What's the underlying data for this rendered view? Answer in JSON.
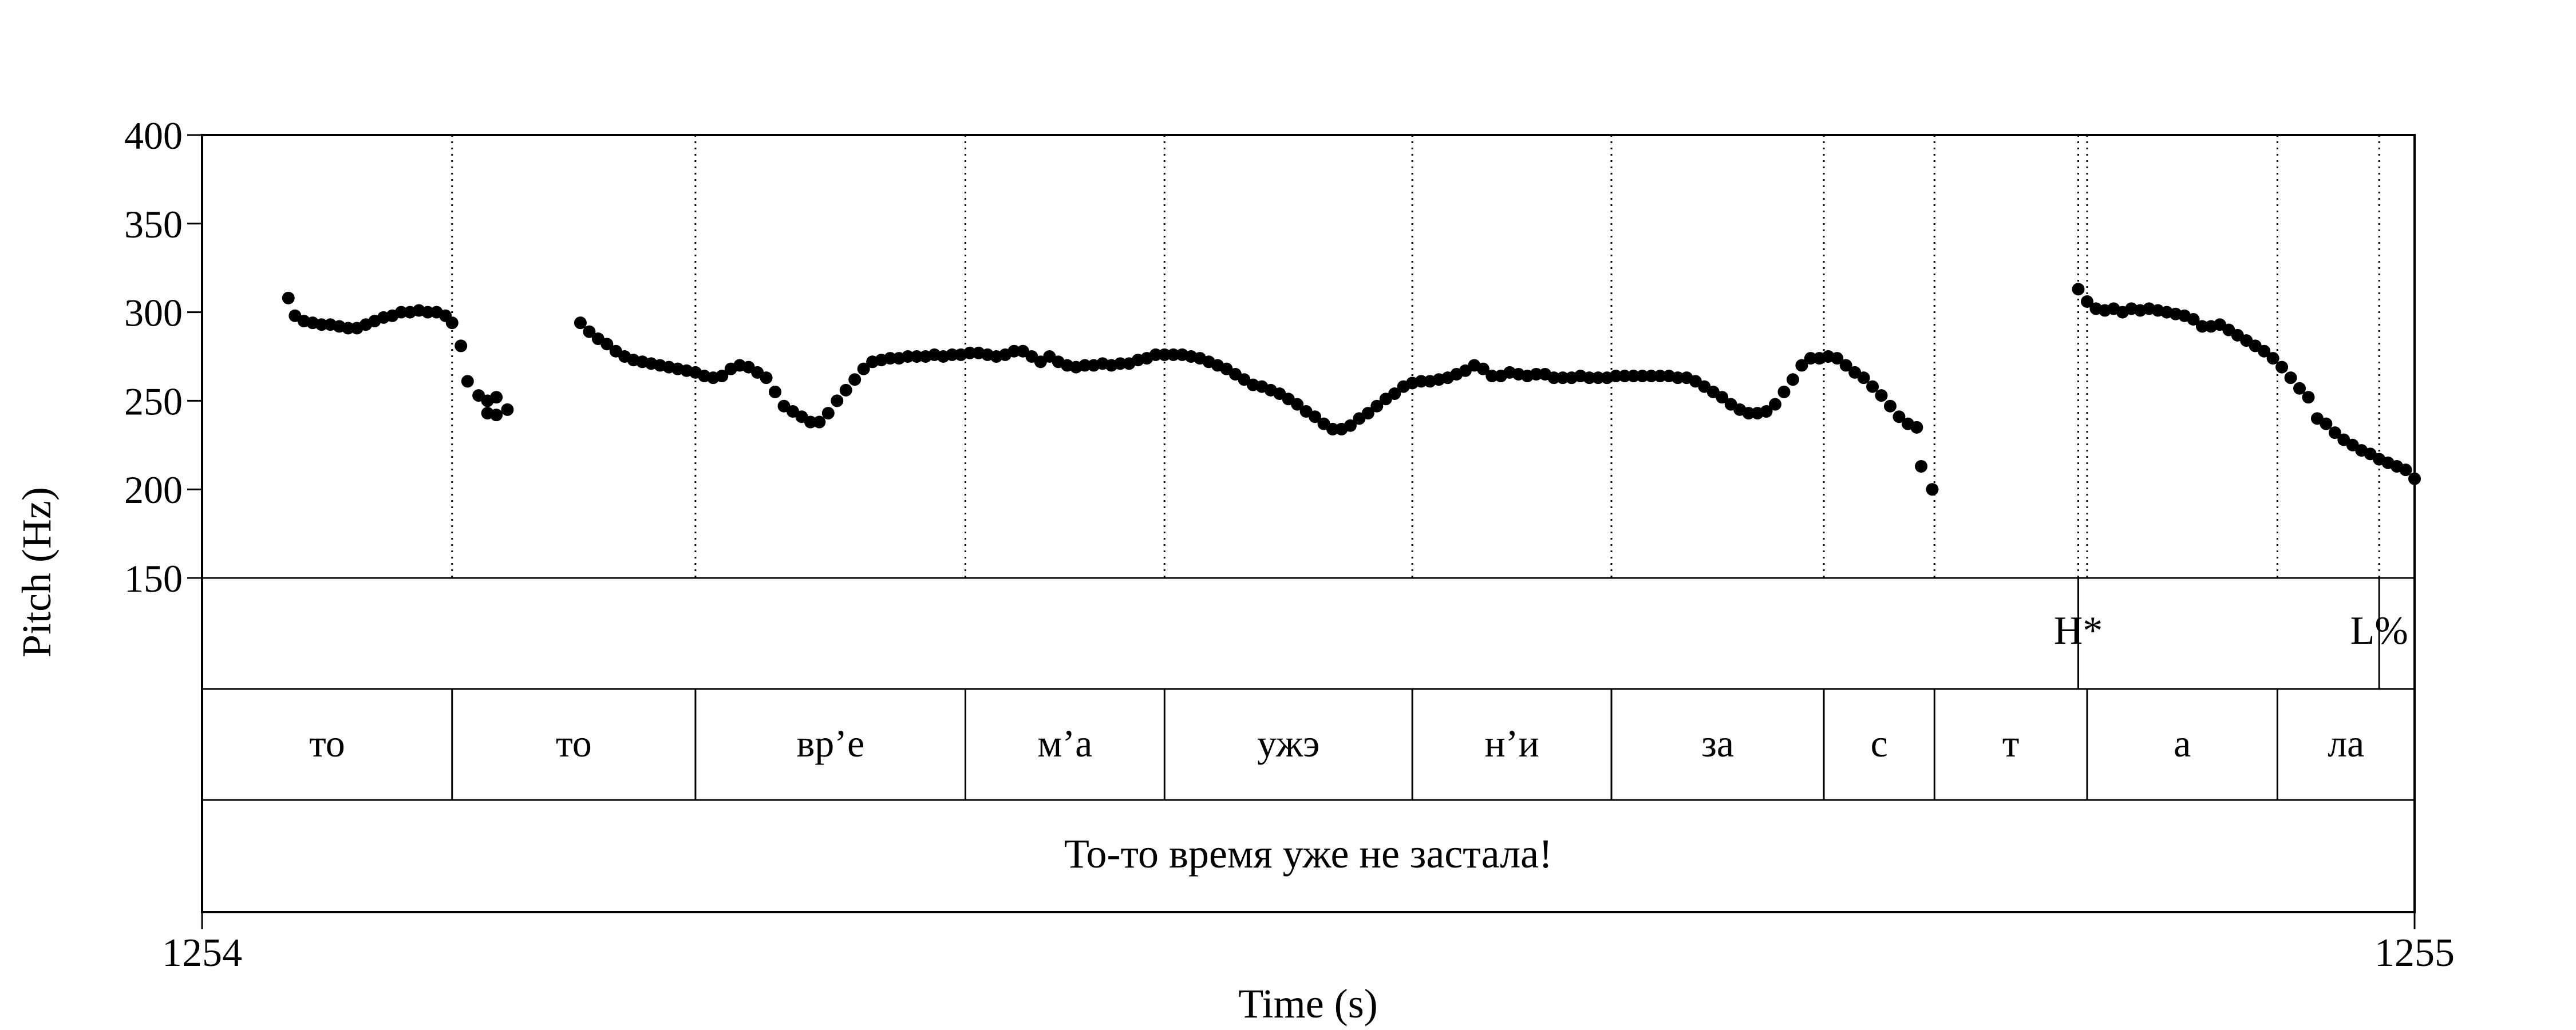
{
  "chart_data": {
    "type": "scatter",
    "ylabel": "Pitch (Hz)",
    "xlabel": "Time (s)",
    "ylim": [
      150,
      400
    ],
    "yticks": [
      "400",
      "350",
      "300",
      "250",
      "200",
      "150"
    ],
    "xlim": [
      1254,
      1255
    ],
    "xticks": [
      "1254",
      "1255"
    ],
    "grid": false,
    "series": [
      {
        "points": [
          [
            1254.039,
            308
          ],
          [
            1254.042,
            298
          ],
          [
            1254.046,
            295
          ],
          [
            1254.05,
            294
          ],
          [
            1254.054,
            293
          ],
          [
            1254.058,
            293
          ],
          [
            1254.062,
            292
          ],
          [
            1254.066,
            291
          ],
          [
            1254.07,
            291
          ],
          [
            1254.074,
            293
          ],
          [
            1254.078,
            295
          ],
          [
            1254.082,
            297
          ],
          [
            1254.086,
            298
          ],
          [
            1254.09,
            300
          ],
          [
            1254.094,
            300
          ],
          [
            1254.098,
            301
          ],
          [
            1254.102,
            300
          ],
          [
            1254.106,
            300
          ],
          [
            1254.11,
            298
          ],
          [
            1254.113,
            294
          ],
          [
            1254.117,
            281
          ],
          [
            1254.12,
            261
          ],
          [
            1254.125,
            253
          ],
          [
            1254.129,
            243
          ],
          [
            1254.133,
            242
          ],
          [
            1254.129,
            250
          ],
          [
            1254.133,
            252
          ],
          [
            1254.138,
            245
          ],
          [
            1254.171,
            294
          ],
          [
            1254.175,
            289
          ],
          [
            1254.179,
            285
          ],
          [
            1254.183,
            282
          ],
          [
            1254.187,
            278
          ],
          [
            1254.191,
            275
          ],
          [
            1254.195,
            273
          ],
          [
            1254.199,
            272
          ],
          [
            1254.203,
            271
          ],
          [
            1254.207,
            270
          ],
          [
            1254.211,
            269
          ],
          [
            1254.215,
            268
          ],
          [
            1254.219,
            267
          ],
          [
            1254.223,
            266
          ],
          [
            1254.227,
            264
          ],
          [
            1254.231,
            263
          ],
          [
            1254.235,
            264
          ],
          [
            1254.239,
            268
          ],
          [
            1254.243,
            270
          ],
          [
            1254.247,
            269
          ],
          [
            1254.251,
            266
          ],
          [
            1254.255,
            263
          ],
          [
            1254.259,
            255
          ],
          [
            1254.263,
            247
          ],
          [
            1254.267,
            244
          ],
          [
            1254.271,
            241
          ],
          [
            1254.275,
            238
          ],
          [
            1254.279,
            238
          ],
          [
            1254.283,
            243
          ],
          [
            1254.287,
            250
          ],
          [
            1254.291,
            256
          ],
          [
            1254.295,
            262
          ],
          [
            1254.299,
            268
          ],
          [
            1254.303,
            272
          ],
          [
            1254.307,
            273
          ],
          [
            1254.311,
            274
          ],
          [
            1254.315,
            274
          ],
          [
            1254.319,
            275
          ],
          [
            1254.323,
            275
          ],
          [
            1254.327,
            275
          ],
          [
            1254.331,
            276
          ],
          [
            1254.335,
            275
          ],
          [
            1254.339,
            276
          ],
          [
            1254.343,
            276
          ],
          [
            1254.347,
            277
          ],
          [
            1254.351,
            277
          ],
          [
            1254.355,
            276
          ],
          [
            1254.359,
            275
          ],
          [
            1254.363,
            276
          ],
          [
            1254.367,
            278
          ],
          [
            1254.371,
            278
          ],
          [
            1254.375,
            275
          ],
          [
            1254.379,
            272
          ],
          [
            1254.383,
            275
          ],
          [
            1254.387,
            272
          ],
          [
            1254.391,
            270
          ],
          [
            1254.395,
            269
          ],
          [
            1254.399,
            270
          ],
          [
            1254.403,
            270
          ],
          [
            1254.407,
            271
          ],
          [
            1254.411,
            270
          ],
          [
            1254.415,
            271
          ],
          [
            1254.419,
            271
          ],
          [
            1254.423,
            273
          ],
          [
            1254.427,
            274
          ],
          [
            1254.431,
            276
          ],
          [
            1254.435,
            276
          ],
          [
            1254.439,
            276
          ],
          [
            1254.443,
            276
          ],
          [
            1254.447,
            275
          ],
          [
            1254.451,
            274
          ],
          [
            1254.455,
            272
          ],
          [
            1254.459,
            270
          ],
          [
            1254.463,
            268
          ],
          [
            1254.467,
            265
          ],
          [
            1254.471,
            262
          ],
          [
            1254.475,
            259
          ],
          [
            1254.479,
            258
          ],
          [
            1254.483,
            256
          ],
          [
            1254.487,
            254
          ],
          [
            1254.491,
            251
          ],
          [
            1254.495,
            248
          ],
          [
            1254.499,
            244
          ],
          [
            1254.503,
            241
          ],
          [
            1254.507,
            237
          ],
          [
            1254.511,
            234
          ],
          [
            1254.515,
            234
          ],
          [
            1254.519,
            236
          ],
          [
            1254.523,
            240
          ],
          [
            1254.527,
            243
          ],
          [
            1254.531,
            247
          ],
          [
            1254.535,
            251
          ],
          [
            1254.539,
            254
          ],
          [
            1254.543,
            258
          ],
          [
            1254.547,
            260
          ],
          [
            1254.551,
            261
          ],
          [
            1254.555,
            261
          ],
          [
            1254.559,
            262
          ],
          [
            1254.563,
            263
          ],
          [
            1254.567,
            265
          ],
          [
            1254.571,
            267
          ],
          [
            1254.575,
            270
          ],
          [
            1254.579,
            268
          ],
          [
            1254.583,
            264
          ],
          [
            1254.587,
            264
          ],
          [
            1254.591,
            266
          ],
          [
            1254.595,
            265
          ],
          [
            1254.599,
            264
          ],
          [
            1254.603,
            265
          ],
          [
            1254.607,
            265
          ],
          [
            1254.611,
            263
          ],
          [
            1254.615,
            263
          ],
          [
            1254.619,
            263
          ],
          [
            1254.623,
            264
          ],
          [
            1254.627,
            263
          ],
          [
            1254.631,
            263
          ],
          [
            1254.635,
            263
          ],
          [
            1254.639,
            264
          ],
          [
            1254.643,
            264
          ],
          [
            1254.647,
            264
          ],
          [
            1254.651,
            264
          ],
          [
            1254.655,
            264
          ],
          [
            1254.659,
            264
          ],
          [
            1254.663,
            264
          ],
          [
            1254.667,
            263
          ],
          [
            1254.671,
            263
          ],
          [
            1254.675,
            261
          ],
          [
            1254.679,
            258
          ],
          [
            1254.683,
            255
          ],
          [
            1254.687,
            252
          ],
          [
            1254.691,
            248
          ],
          [
            1254.695,
            245
          ],
          [
            1254.699,
            243
          ],
          [
            1254.703,
            243
          ],
          [
            1254.707,
            244
          ],
          [
            1254.711,
            248
          ],
          [
            1254.715,
            255
          ],
          [
            1254.719,
            262
          ],
          [
            1254.723,
            270
          ],
          [
            1254.727,
            274
          ],
          [
            1254.731,
            274
          ],
          [
            1254.735,
            275
          ],
          [
            1254.739,
            274
          ],
          [
            1254.743,
            270
          ],
          [
            1254.747,
            266
          ],
          [
            1254.751,
            263
          ],
          [
            1254.755,
            258
          ],
          [
            1254.759,
            253
          ],
          [
            1254.763,
            247
          ],
          [
            1254.767,
            241
          ],
          [
            1254.771,
            237
          ],
          [
            1254.775,
            235
          ],
          [
            1254.777,
            213
          ],
          [
            1254.782,
            200
          ],
          [
            1254.848,
            313
          ],
          [
            1254.852,
            306
          ],
          [
            1254.856,
            302
          ],
          [
            1254.86,
            301
          ],
          [
            1254.864,
            302
          ],
          [
            1254.868,
            300
          ],
          [
            1254.872,
            302
          ],
          [
            1254.876,
            301
          ],
          [
            1254.88,
            302
          ],
          [
            1254.884,
            301
          ],
          [
            1254.888,
            300
          ],
          [
            1254.892,
            299
          ],
          [
            1254.896,
            298
          ],
          [
            1254.9,
            296
          ],
          [
            1254.904,
            292
          ],
          [
            1254.908,
            292
          ],
          [
            1254.912,
            293
          ],
          [
            1254.916,
            290
          ],
          [
            1254.92,
            287
          ],
          [
            1254.924,
            284
          ],
          [
            1254.928,
            281
          ],
          [
            1254.932,
            278
          ],
          [
            1254.936,
            274
          ],
          [
            1254.94,
            269
          ],
          [
            1254.944,
            263
          ],
          [
            1254.948,
            257
          ],
          [
            1254.952,
            252
          ],
          [
            1254.956,
            240
          ],
          [
            1254.96,
            237
          ],
          [
            1254.964,
            232
          ],
          [
            1254.968,
            228
          ],
          [
            1254.972,
            225
          ],
          [
            1254.976,
            222
          ],
          [
            1254.98,
            220
          ],
          [
            1254.984,
            217
          ],
          [
            1254.988,
            215
          ],
          [
            1254.992,
            213
          ],
          [
            1254.996,
            211
          ],
          [
            1255.0,
            206
          ]
        ]
      }
    ],
    "tiers": [
      {
        "name": "tones",
        "intervals": [
          {
            "label": "H*",
            "time": 1254.848
          },
          {
            "label": "L%",
            "time": 1254.984
          }
        ]
      },
      {
        "name": "syllables",
        "intervals": [
          {
            "label": "то",
            "start": 1254.0,
            "end": 1254.113
          },
          {
            "label": "то",
            "start": 1254.113,
            "end": 1254.223
          },
          {
            "label": "вр’е",
            "start": 1254.223,
            "end": 1254.345
          },
          {
            "label": "м’а",
            "start": 1254.345,
            "end": 1254.435
          },
          {
            "label": "ужэ",
            "start": 1254.435,
            "end": 1254.547
          },
          {
            "label": "н’и",
            "start": 1254.547,
            "end": 1254.637
          },
          {
            "label": "за",
            "start": 1254.637,
            "end": 1254.733
          },
          {
            "label": "с",
            "start": 1254.733,
            "end": 1254.783
          },
          {
            "label": "т",
            "start": 1254.783,
            "end": 1254.852
          },
          {
            "label": "а",
            "start": 1254.852,
            "end": 1254.938
          },
          {
            "label": "ла",
            "start": 1254.938,
            "end": 1255.0
          }
        ]
      },
      {
        "name": "sentence",
        "intervals": [
          {
            "label": "То-то время уже не застала!",
            "start": 1254.0,
            "end": 1255.0
          }
        ]
      }
    ]
  }
}
